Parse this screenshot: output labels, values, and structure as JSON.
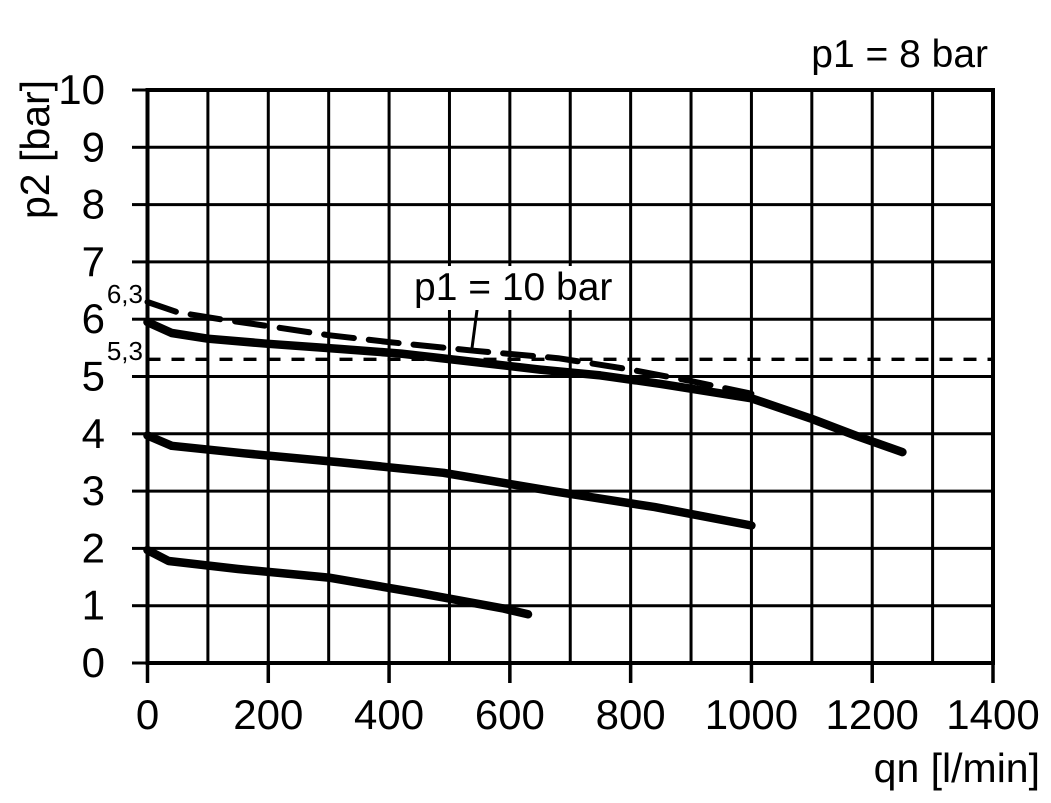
{
  "chart_data": {
    "type": "line",
    "xlabel": "qn [l/min]",
    "ylabel": "p2 [bar]",
    "xlim": [
      0,
      1400
    ],
    "ylim": [
      0,
      10
    ],
    "x_grid_interval": 100,
    "y_grid_interval": 1,
    "grid": true,
    "x_tick_labels": [
      "0",
      "200",
      "400",
      "600",
      "800",
      "1000",
      "1200",
      "1400"
    ],
    "x_tick_values": [
      0,
      200,
      400,
      600,
      800,
      1000,
      1200,
      1400
    ],
    "y_tick_labels": [
      "0",
      "1",
      "2",
      "3",
      "4",
      "5",
      "6",
      "7",
      "8",
      "9",
      "10"
    ],
    "y_tick_values": [
      0,
      1,
      2,
      3,
      4,
      5,
      6,
      7,
      8,
      9,
      10
    ],
    "y_special_ticks": [
      {
        "label": "6,3",
        "value": 6.3
      },
      {
        "label": "5,3",
        "value": 5.3
      }
    ],
    "reference_lines": [
      {
        "axis": "y",
        "value": 5.3,
        "style": "short-dash",
        "x_start": 0,
        "x_end": 1400
      }
    ],
    "series": [
      {
        "id": "curve-p1-10bar",
        "label": "p1 = 10 bar",
        "style": "long-dash",
        "points": [
          [
            0,
            6.3
          ],
          [
            50,
            6.12
          ],
          [
            120,
            6.0
          ],
          [
            200,
            5.88
          ],
          [
            300,
            5.72
          ],
          [
            400,
            5.6
          ],
          [
            540,
            5.45
          ],
          [
            680,
            5.32
          ],
          [
            800,
            5.12
          ],
          [
            900,
            4.92
          ],
          [
            1000,
            4.7
          ]
        ]
      },
      {
        "id": "curve-p1-8bar",
        "label": "p1 = 8 bar",
        "style": "solid",
        "points": [
          [
            0,
            5.95
          ],
          [
            40,
            5.76
          ],
          [
            100,
            5.66
          ],
          [
            200,
            5.57
          ],
          [
            320,
            5.48
          ],
          [
            420,
            5.4
          ],
          [
            520,
            5.28
          ],
          [
            650,
            5.12
          ],
          [
            750,
            5.02
          ],
          [
            850,
            4.87
          ],
          [
            1000,
            4.62
          ],
          [
            1100,
            4.26
          ],
          [
            1175,
            3.96
          ],
          [
            1250,
            3.68
          ]
        ]
      },
      {
        "id": "curve-setting-4bar",
        "label": null,
        "style": "solid",
        "points": [
          [
            0,
            3.97
          ],
          [
            40,
            3.79
          ],
          [
            160,
            3.66
          ],
          [
            320,
            3.5
          ],
          [
            490,
            3.32
          ],
          [
            670,
            3.0
          ],
          [
            840,
            2.72
          ],
          [
            1000,
            2.4
          ]
        ]
      },
      {
        "id": "curve-setting-2bar",
        "label": null,
        "style": "solid",
        "points": [
          [
            0,
            1.97
          ],
          [
            35,
            1.78
          ],
          [
            150,
            1.64
          ],
          [
            300,
            1.49
          ],
          [
            450,
            1.22
          ],
          [
            590,
            0.95
          ],
          [
            630,
            0.85
          ]
        ]
      }
    ],
    "annotations": {
      "p1_8": {
        "text": "p1 = 8 bar",
        "position": "top-right"
      },
      "p1_10": {
        "text": "p1 = 10 bar",
        "position": "inside-plot",
        "leader_from": [
          547,
          6.27
        ],
        "leader_to": [
          537,
          5.47
        ]
      }
    },
    "colors": {
      "foreground": "#000000",
      "background": "#ffffff"
    }
  }
}
